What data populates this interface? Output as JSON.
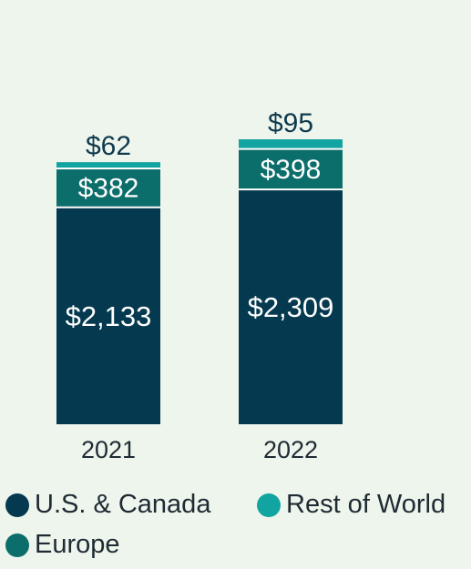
{
  "chart_data": {
    "type": "bar",
    "stacked": true,
    "categories": [
      "2021",
      "2022"
    ],
    "series": [
      {
        "name": "U.S. & Canada",
        "values": [
          2133,
          2309
        ],
        "labels": [
          "$2,133",
          "$2,309"
        ],
        "color": "#05394f",
        "label_color": "#ffffff"
      },
      {
        "name": "Europe",
        "values": [
          382,
          398
        ],
        "labels": [
          "$382",
          "$398"
        ],
        "color": "#0b6e6b",
        "label_color": "#ffffff"
      },
      {
        "name": "Rest of World",
        "values": [
          62,
          95
        ],
        "labels": [
          "$62",
          "$95"
        ],
        "color": "#12a4a0",
        "label_color": "#0f3a4e"
      }
    ],
    "legend_position": "bottom",
    "colors": {
      "background": "#eef5ec",
      "tick_text": "#1e2b33"
    }
  }
}
